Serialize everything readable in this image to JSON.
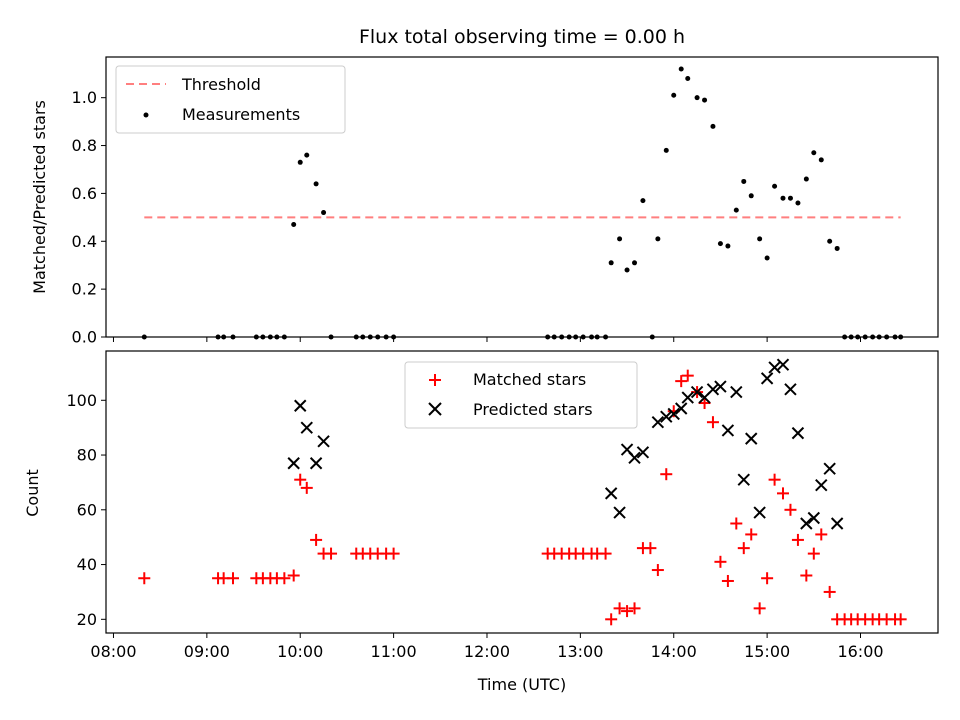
{
  "chart_data": [
    {
      "type": "scatter",
      "title": "Flux total observing time = 0.00 h",
      "xlabel": "",
      "ylabel": "Matched/Predicted stars",
      "xlim": [
        7.92,
        16.83
      ],
      "ylim": [
        0,
        1.17
      ],
      "yticks": [
        0.0,
        0.2,
        0.4,
        0.6,
        0.8,
        1.0
      ],
      "ytick_labels": [
        "0.0",
        "0.2",
        "0.4",
        "0.6",
        "0.8",
        "1.0"
      ],
      "grid": false,
      "legend_position": "top-left",
      "threshold": {
        "name": "Threshold",
        "value": 0.5,
        "x_range": [
          8.33,
          16.43
        ],
        "color": "#ff7f7f",
        "style": "dashed"
      },
      "series": [
        {
          "name": "Measurements",
          "marker": "dot",
          "color": "#000000",
          "points": [
            [
              8.33,
              0.0
            ],
            [
              9.12,
              0.0
            ],
            [
              9.18,
              0.0
            ],
            [
              9.28,
              0.0
            ],
            [
              9.53,
              0.0
            ],
            [
              9.6,
              0.0
            ],
            [
              9.68,
              0.0
            ],
            [
              9.75,
              0.0
            ],
            [
              9.83,
              0.0
            ],
            [
              9.93,
              0.47
            ],
            [
              10.0,
              0.73
            ],
            [
              10.07,
              0.76
            ],
            [
              10.17,
              0.64
            ],
            [
              10.25,
              0.52
            ],
            [
              10.33,
              0.0
            ],
            [
              10.6,
              0.0
            ],
            [
              10.67,
              0.0
            ],
            [
              10.75,
              0.0
            ],
            [
              10.83,
              0.0
            ],
            [
              10.92,
              0.0
            ],
            [
              11.0,
              0.0
            ],
            [
              12.65,
              0.0
            ],
            [
              12.72,
              0.0
            ],
            [
              12.8,
              0.0
            ],
            [
              12.88,
              0.0
            ],
            [
              12.95,
              0.0
            ],
            [
              13.03,
              0.0
            ],
            [
              13.12,
              0.0
            ],
            [
              13.18,
              0.0
            ],
            [
              13.27,
              0.0
            ],
            [
              13.33,
              0.31
            ],
            [
              13.42,
              0.41
            ],
            [
              13.5,
              0.28
            ],
            [
              13.58,
              0.31
            ],
            [
              13.67,
              0.57
            ],
            [
              13.77,
              0.0
            ],
            [
              13.83,
              0.41
            ],
            [
              13.92,
              0.78
            ],
            [
              14.0,
              1.01
            ],
            [
              14.08,
              1.12
            ],
            [
              14.15,
              1.08
            ],
            [
              14.25,
              1.0
            ],
            [
              14.33,
              0.99
            ],
            [
              14.42,
              0.88
            ],
            [
              14.5,
              0.39
            ],
            [
              14.58,
              0.38
            ],
            [
              14.67,
              0.53
            ],
            [
              14.75,
              0.65
            ],
            [
              14.83,
              0.59
            ],
            [
              14.92,
              0.41
            ],
            [
              15.0,
              0.33
            ],
            [
              15.08,
              0.63
            ],
            [
              15.17,
              0.58
            ],
            [
              15.25,
              0.58
            ],
            [
              15.33,
              0.56
            ],
            [
              15.42,
              0.66
            ],
            [
              15.5,
              0.77
            ],
            [
              15.58,
              0.74
            ],
            [
              15.67,
              0.4
            ],
            [
              15.75,
              0.37
            ],
            [
              15.83,
              0.0
            ],
            [
              15.9,
              0.0
            ],
            [
              15.97,
              0.0
            ],
            [
              16.05,
              0.0
            ],
            [
              16.13,
              0.0
            ],
            [
              16.2,
              0.0
            ],
            [
              16.28,
              0.0
            ],
            [
              16.37,
              0.0
            ],
            [
              16.43,
              0.0
            ]
          ]
        }
      ]
    },
    {
      "type": "scatter",
      "title": "",
      "xlabel": "Time (UTC)",
      "ylabel": "Count",
      "xlim": [
        7.92,
        16.83
      ],
      "ylim": [
        15,
        118
      ],
      "xticks": [
        8,
        9,
        10,
        11,
        12,
        13,
        14,
        15,
        16
      ],
      "xtick_labels": [
        "08:00",
        "09:00",
        "10:00",
        "11:00",
        "12:00",
        "13:00",
        "14:00",
        "15:00",
        "16:00"
      ],
      "yticks": [
        20,
        40,
        60,
        80,
        100
      ],
      "ytick_labels": [
        "20",
        "40",
        "60",
        "80",
        "100"
      ],
      "grid": false,
      "legend_position": "top-center",
      "series": [
        {
          "name": "Matched stars",
          "marker": "plus",
          "color": "#ff0000",
          "points": [
            [
              8.33,
              35
            ],
            [
              9.12,
              35
            ],
            [
              9.18,
              35
            ],
            [
              9.28,
              35
            ],
            [
              9.53,
              35
            ],
            [
              9.6,
              35
            ],
            [
              9.68,
              35
            ],
            [
              9.75,
              35
            ],
            [
              9.83,
              35
            ],
            [
              9.93,
              36
            ],
            [
              10.0,
              71
            ],
            [
              10.07,
              68
            ],
            [
              10.17,
              49
            ],
            [
              10.25,
              44
            ],
            [
              10.33,
              44
            ],
            [
              10.6,
              44
            ],
            [
              10.67,
              44
            ],
            [
              10.75,
              44
            ],
            [
              10.83,
              44
            ],
            [
              10.92,
              44
            ],
            [
              11.0,
              44
            ],
            [
              12.65,
              44
            ],
            [
              12.72,
              44
            ],
            [
              12.8,
              44
            ],
            [
              12.88,
              44
            ],
            [
              12.95,
              44
            ],
            [
              13.03,
              44
            ],
            [
              13.12,
              44
            ],
            [
              13.18,
              44
            ],
            [
              13.27,
              44
            ],
            [
              13.33,
              20
            ],
            [
              13.42,
              24
            ],
            [
              13.5,
              23
            ],
            [
              13.58,
              24
            ],
            [
              13.67,
              46
            ],
            [
              13.75,
              46
            ],
            [
              13.83,
              38
            ],
            [
              13.92,
              73
            ],
            [
              14.0,
              96
            ],
            [
              14.08,
              107
            ],
            [
              14.15,
              109
            ],
            [
              14.25,
              103
            ],
            [
              14.33,
              99
            ],
            [
              14.42,
              92
            ],
            [
              14.5,
              41
            ],
            [
              14.58,
              34
            ],
            [
              14.67,
              55
            ],
            [
              14.75,
              46
            ],
            [
              14.83,
              51
            ],
            [
              14.92,
              24
            ],
            [
              15.0,
              35
            ],
            [
              15.08,
              71
            ],
            [
              15.17,
              66
            ],
            [
              15.25,
              60
            ],
            [
              15.33,
              49
            ],
            [
              15.42,
              36
            ],
            [
              15.5,
              44
            ],
            [
              15.58,
              51
            ],
            [
              15.67,
              30
            ],
            [
              15.75,
              20
            ],
            [
              15.83,
              20
            ],
            [
              15.9,
              20
            ],
            [
              15.97,
              20
            ],
            [
              16.05,
              20
            ],
            [
              16.13,
              20
            ],
            [
              16.2,
              20
            ],
            [
              16.28,
              20
            ],
            [
              16.37,
              20
            ],
            [
              16.43,
              20
            ]
          ]
        },
        {
          "name": "Predicted stars",
          "marker": "x",
          "color": "#000000",
          "points": [
            [
              9.93,
              77
            ],
            [
              10.0,
              98
            ],
            [
              10.07,
              90
            ],
            [
              10.17,
              77
            ],
            [
              10.25,
              85
            ],
            [
              13.33,
              66
            ],
            [
              13.42,
              59
            ],
            [
              13.5,
              82
            ],
            [
              13.58,
              79
            ],
            [
              13.67,
              81
            ],
            [
              13.83,
              92
            ],
            [
              13.92,
              94
            ],
            [
              14.0,
              95
            ],
            [
              14.08,
              97
            ],
            [
              14.15,
              101
            ],
            [
              14.25,
              103
            ],
            [
              14.33,
              101
            ],
            [
              14.42,
              104
            ],
            [
              14.5,
              105
            ],
            [
              14.58,
              89
            ],
            [
              14.67,
              103
            ],
            [
              14.75,
              71
            ],
            [
              14.83,
              86
            ],
            [
              14.92,
              59
            ],
            [
              15.0,
              108
            ],
            [
              15.08,
              112
            ],
            [
              15.17,
              113
            ],
            [
              15.25,
              104
            ],
            [
              15.33,
              88
            ],
            [
              15.42,
              55
            ],
            [
              15.5,
              57
            ],
            [
              15.58,
              69
            ],
            [
              15.67,
              75
            ],
            [
              15.75,
              55
            ]
          ]
        }
      ]
    }
  ]
}
